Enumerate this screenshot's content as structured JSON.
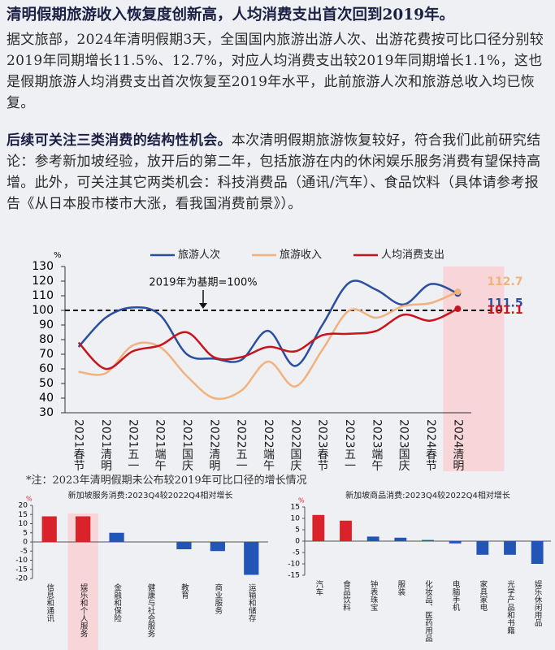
{
  "title": "清明假期旅游收入恢复度创新高，人均消费支出首次回到2019年。",
  "paragraphs": [
    {
      "text": "据文旅部，2024年清明假期3天，全国国内旅游出游人次、出游花费按可比口径分别较2019年同期增长11.5%、12.7%，对应人均消费支出较2019年同期增长1.1%，这也是假期旅游人均消费支出首次恢复至2019年水平，此前旅游人次和旅游总收入均已恢复。"
    },
    {
      "lead": "后续可关注三类消费的结构性机会。",
      "text": "本次清明假期旅游恢复较好，符合我们此前研究结论：参考新加坡经验，放开后的第二年，包括旅游在内的休闲娱乐服务消费有望保持高增。此外，可关注其它两类机会：科技消费品（通讯/汽车）、食品饮料（具体请参考报告《从日本股市楼市大涨，看我国消费前景》）。"
    }
  ],
  "note": "*注：2023年清明假期未公布较2019年可比口径的增长情况",
  "chart_data": [
    {
      "type": "line",
      "y_unit": "%",
      "legend": "top",
      "annotation": "2019年为基期=100%",
      "reference_line": 100,
      "categories": [
        "2021春节",
        "2021清明",
        "2021五一",
        "2021端午",
        "2021国庆",
        "2022清明",
        "2022五一",
        "2022端午",
        "2022国庆",
        "2023春节",
        "2023五一",
        "2023端午",
        "2023国庆",
        "2024春节",
        "2024清明"
      ],
      "series": [
        {
          "name": "旅游人次",
          "color": "#2a4fa0",
          "values": [
            75,
            95,
            102,
            97,
            70,
            67,
            66,
            86,
            62,
            90,
            119,
            114,
            104,
            118,
            111.5
          ]
        },
        {
          "name": "旅游收入",
          "color": "#f2b27e",
          "values": [
            58,
            57,
            76,
            75,
            55,
            40,
            45,
            65,
            48,
            73,
            100,
            95,
            103,
            105,
            112.7
          ]
        },
        {
          "name": "人均消费支出",
          "color": "#c8141e",
          "values": [
            78,
            60,
            72,
            76,
            85,
            68,
            68,
            75,
            72,
            83,
            84,
            86,
            97,
            93,
            101.1
          ]
        }
      ],
      "ylim": [
        30,
        130
      ],
      "yticks": [
        30,
        40,
        50,
        60,
        70,
        80,
        90,
        100,
        110,
        120,
        130
      ]
    },
    {
      "type": "bar",
      "title": "新加坡服务消费:2023Q4较2022Q4相对增长",
      "y_unit": "%",
      "categories": [
        "信息和通讯",
        "娱乐和个人服务",
        "金融和保险",
        "健康与社会服务",
        "教育",
        "商业服务",
        "运输和储存"
      ],
      "values": [
        14,
        14,
        5,
        0,
        -4,
        -5,
        -18
      ],
      "colors": [
        "#d9222a",
        "#d9222a",
        "#2255b5",
        "#2255b5",
        "#2255b5",
        "#2255b5",
        "#2255b5"
      ],
      "ylim": [
        -20,
        20
      ],
      "yticks": [
        -20,
        -15,
        -10,
        -5,
        0,
        5,
        10,
        15,
        20
      ]
    },
    {
      "type": "bar",
      "title": "新加坡商品消费:2023Q4较2022Q4相对增长",
      "y_unit": "%",
      "categories": [
        "汽车",
        "食品饮料",
        "钟表珠宝",
        "服装",
        "化妆品、医药用品",
        "电脑手机",
        "家具家电",
        "光学产品和书籍",
        "娱乐休闲用品"
      ],
      "values": [
        11.5,
        9,
        2,
        1.5,
        0.5,
        -1,
        -6,
        -6,
        -10
      ],
      "colors": [
        "#d9222a",
        "#d9222a",
        "#2255b5",
        "#2255b5",
        "#2255b5",
        "#2255b5",
        "#2255b5",
        "#2255b5",
        "#2255b5"
      ],
      "ylim": [
        -15,
        15
      ],
      "yticks": [
        -15,
        -10,
        -5,
        0,
        5,
        10,
        15
      ]
    }
  ]
}
